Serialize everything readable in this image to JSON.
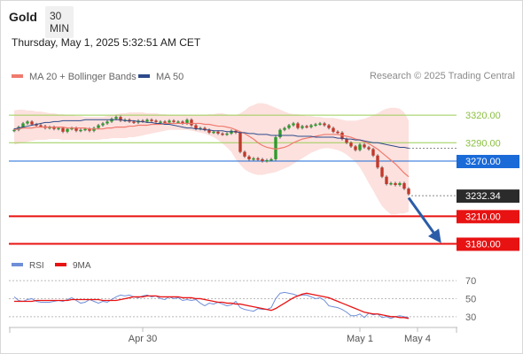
{
  "header": {
    "title": "Gold",
    "timeframe": "30 MIN"
  },
  "datetime": "Thursday, May 1, 2025 5:32:51 AM CET",
  "copyright": "Research © 2025 Trading Central",
  "colors": {
    "ma20": "#f07a6e",
    "bollinger_fill": "#fbd9d6",
    "ma50": "#2d4a8a",
    "candle_up": "#2e9a2e",
    "candle_down": "#c0392b",
    "resistance": "#9acd55",
    "pivot": "#1a6ad8",
    "support": "#e81212",
    "current": "#2b2b2b",
    "arrow": "#2a5ca8",
    "rsi": "#6f8ed8",
    "rsi_ma": "#e81212"
  },
  "chart_data": [
    {
      "type": "candlestick",
      "legend": [
        {
          "name": "MA 20 + Bollinger Bands",
          "color": "#f07a6e"
        },
        {
          "name": "MA 50",
          "color": "#2d4a8a"
        }
      ],
      "legend_position": "top-left",
      "ylim": [
        3166,
        3349
      ],
      "x_ticks": [
        {
          "label": "Apr 30",
          "index": 29
        },
        {
          "label": "May 1",
          "index": 78
        },
        {
          "label": "May 4",
          "index": 91
        }
      ],
      "levels": [
        {
          "value": 3320.0,
          "label": "3320.00",
          "kind": "resistance"
        },
        {
          "value": 3290.0,
          "label": "3290.00",
          "kind": "resistance"
        },
        {
          "value": 3270.0,
          "label": "3270.00",
          "kind": "pivot"
        },
        {
          "value": 3210.0,
          "label": "3210.00",
          "kind": "support"
        },
        {
          "value": 3180.0,
          "label": "3180.00",
          "kind": "support"
        }
      ],
      "current_price": {
        "value": 3232.34,
        "label": "3232.34"
      },
      "projection": {
        "from": {
          "index": 89,
          "value": 3230
        },
        "to": {
          "index": 96,
          "value": 3183
        }
      },
      "closes": [
        3304,
        3307,
        3311,
        3313,
        3310,
        3309,
        3308,
        3306,
        3307,
        3305,
        3306,
        3302,
        3305,
        3306,
        3303,
        3304,
        3305,
        3303,
        3306,
        3309,
        3311,
        3313,
        3316,
        3318,
        3314,
        3315,
        3313,
        3312,
        3314,
        3313,
        3315,
        3314,
        3313,
        3313,
        3312,
        3314,
        3313,
        3313,
        3311,
        3315,
        3309,
        3305,
        3306,
        3304,
        3301,
        3302,
        3300,
        3299,
        3300,
        3303,
        3301,
        3280,
        3275,
        3272,
        3273,
        3272,
        3270,
        3271,
        3272,
        3296,
        3304,
        3306,
        3309,
        3311,
        3306,
        3308,
        3307,
        3309,
        3310,
        3311,
        3309,
        3306,
        3302,
        3301,
        3294,
        3290,
        3286,
        3282,
        3288,
        3285,
        3283,
        3276,
        3263,
        3253,
        3245,
        3246,
        3244,
        3246,
        3240,
        3234
      ],
      "ma20": [
        3304,
        3305,
        3306,
        3306,
        3306,
        3307,
        3307,
        3307,
        3307,
        3307,
        3307,
        3307,
        3306,
        3306,
        3306,
        3306,
        3306,
        3305,
        3305,
        3305,
        3305,
        3306,
        3306,
        3307,
        3307,
        3307,
        3308,
        3308,
        3309,
        3309,
        3309,
        3310,
        3310,
        3310,
        3311,
        3311,
        3311,
        3311,
        3311,
        3311,
        3311,
        3311,
        3311,
        3310,
        3310,
        3309,
        3308,
        3308,
        3307,
        3306,
        3304,
        3302,
        3300,
        3297,
        3294,
        3290,
        3287,
        3285,
        3284,
        3283,
        3284,
        3285,
        3287,
        3290,
        3292,
        3294,
        3295,
        3296,
        3297,
        3298,
        3299,
        3299,
        3299,
        3299,
        3298,
        3297,
        3296,
        3294,
        3293,
        3291,
        3289,
        3286,
        3283,
        3279,
        3275,
        3271,
        3267,
        3262,
        3257,
        3253
      ],
      "bb_upper": [
        3325,
        3326,
        3326,
        3325,
        3325,
        3324,
        3324,
        3323,
        3322,
        3322,
        3321,
        3321,
        3320,
        3320,
        3319,
        3319,
        3318,
        3318,
        3318,
        3318,
        3318,
        3319,
        3320,
        3321,
        3322,
        3322,
        3323,
        3323,
        3323,
        3323,
        3322,
        3322,
        3322,
        3321,
        3321,
        3320,
        3320,
        3320,
        3320,
        3320,
        3320,
        3320,
        3320,
        3320,
        3321,
        3321,
        3322,
        3322,
        3321,
        3320,
        3320,
        3322,
        3325,
        3329,
        3331,
        3333,
        3333,
        3332,
        3330,
        3328,
        3326,
        3324,
        3322,
        3321,
        3321,
        3320,
        3319,
        3319,
        3318,
        3318,
        3317,
        3317,
        3317,
        3316,
        3315,
        3314,
        3314,
        3314,
        3315,
        3316,
        3318,
        3320,
        3322,
        3325,
        3327,
        3328,
        3328,
        3327,
        3323,
        3314
      ],
      "bb_lower": [
        3288,
        3289,
        3290,
        3291,
        3292,
        3293,
        3293,
        3293,
        3294,
        3294,
        3294,
        3293,
        3293,
        3293,
        3293,
        3293,
        3293,
        3293,
        3293,
        3293,
        3294,
        3294,
        3295,
        3295,
        3295,
        3295,
        3296,
        3296,
        3297,
        3298,
        3299,
        3300,
        3301,
        3302,
        3303,
        3304,
        3304,
        3304,
        3304,
        3304,
        3303,
        3302,
        3301,
        3300,
        3298,
        3296,
        3293,
        3289,
        3285,
        3280,
        3272,
        3266,
        3261,
        3258,
        3256,
        3255,
        3255,
        3256,
        3257,
        3258,
        3260,
        3262,
        3264,
        3267,
        3270,
        3273,
        3276,
        3279,
        3281,
        3283,
        3284,
        3284,
        3283,
        3282,
        3280,
        3277,
        3273,
        3269,
        3263,
        3255,
        3246,
        3238,
        3229,
        3221,
        3216,
        3212,
        3212,
        3213,
        3213,
        3215
      ],
      "ma50": [
        3305,
        3306,
        3307,
        3308,
        3309,
        3310,
        3311,
        3312,
        3312,
        3313,
        3313,
        3314,
        3314,
        3314,
        3314,
        3314,
        3315,
        3315,
        3315,
        3315,
        3315,
        3315,
        3315,
        3315,
        3315,
        3314,
        3314,
        3314,
        3313,
        3313,
        3312,
        3312,
        3311,
        3311,
        3310,
        3310,
        3309,
        3308,
        3307,
        3306,
        3306,
        3305,
        3305,
        3304,
        3304,
        3303,
        3303,
        3303,
        3302,
        3302,
        3302,
        3301,
        3301,
        3300,
        3300,
        3299,
        3299,
        3299,
        3298,
        3298,
        3298,
        3298,
        3298,
        3298,
        3297,
        3297,
        3297,
        3297,
        3296,
        3296,
        3296,
        3296,
        3296,
        3295,
        3295,
        3294,
        3294,
        3293,
        3293,
        3292,
        3291,
        3290,
        3290,
        3289,
        3288,
        3287,
        3286,
        3285,
        3285,
        3284
      ]
    },
    {
      "type": "line",
      "legend": [
        {
          "name": "RSI",
          "color": "#6f8ed8"
        },
        {
          "name": "9MA",
          "color": "#e81212"
        }
      ],
      "ylim": [
        20,
        75
      ],
      "y_ticks": [
        70,
        50,
        30
      ],
      "series": [
        {
          "name": "RSI",
          "values": [
            52,
            48,
            47,
            49,
            50,
            47,
            46,
            46,
            46,
            47,
            48,
            47,
            49,
            51,
            48,
            45,
            46,
            49,
            47,
            45,
            47,
            46,
            49,
            52,
            54,
            53,
            54,
            52,
            51,
            53,
            54,
            52,
            53,
            50,
            49,
            52,
            50,
            51,
            48,
            49,
            48,
            49,
            45,
            42,
            45,
            44,
            46,
            44,
            42,
            43,
            47,
            40,
            38,
            37,
            36,
            39,
            38,
            38,
            40,
            50,
            56,
            57,
            56,
            55,
            53,
            54,
            54,
            52,
            50,
            51,
            48,
            42,
            41,
            40,
            38,
            35,
            31,
            31,
            33,
            29,
            34,
            32,
            33,
            29,
            30,
            28,
            30,
            31,
            30,
            29
          ]
        },
        {
          "name": "9MA",
          "values": [
            47,
            47,
            47,
            47,
            47,
            48,
            48,
            48,
            48,
            48,
            48,
            48,
            48,
            49,
            49,
            49,
            49,
            49,
            49,
            49,
            48,
            48,
            48,
            48,
            49,
            50,
            51,
            52,
            52,
            52,
            53,
            53,
            53,
            52,
            52,
            52,
            52,
            52,
            51,
            51,
            51,
            50,
            50,
            49,
            48,
            47,
            46,
            46,
            45,
            45,
            44,
            44,
            43,
            42,
            41,
            40,
            39,
            38,
            37,
            39,
            42,
            45,
            48,
            51,
            53,
            55,
            56,
            55,
            54,
            53,
            52,
            51,
            49,
            47,
            45,
            43,
            41,
            39,
            37,
            35,
            34,
            33,
            33,
            32,
            31,
            30,
            30,
            29,
            29,
            28
          ]
        }
      ]
    }
  ]
}
